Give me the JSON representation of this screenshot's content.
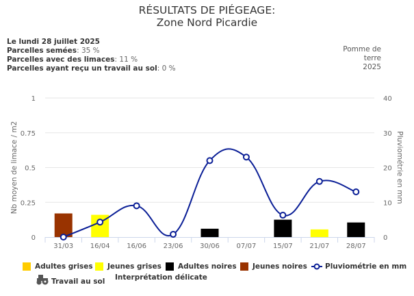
{
  "title": {
    "line1": "RÉSULTATS DE PIÉGEAGE:",
    "line2": "Zone Nord Picardie"
  },
  "info": {
    "date": "Le lundi 28 juillet 2025",
    "semees_label": "Parcelles semées",
    "semees_value": ": 35 %",
    "limaces_label": "Parcelles avec des limaces",
    "limaces_value": ": 11 %",
    "travail_label": "Parcelles ayant reçu un travail au sol",
    "travail_value": ": 0 %"
  },
  "crop": {
    "line1": "Pomme de",
    "line2": "terre",
    "line3": "2025"
  },
  "chart_data": {
    "type": "bar",
    "categories": [
      "31/03",
      "16/04",
      "16/06",
      "23/06",
      "30/06",
      "07/07",
      "15/07",
      "21/07",
      "28/07"
    ],
    "ylabel": "Nb moyen de limace / m2",
    "y2label": "Pluviométrie en mm",
    "ylim": [
      0,
      1
    ],
    "y2lim": [
      0,
      40
    ],
    "yticks": [
      "0",
      "0.25",
      "0.5",
      "0.75",
      "1"
    ],
    "y2ticks": [
      "0",
      "10",
      "20",
      "30",
      "40"
    ],
    "grid": true,
    "series": [
      {
        "name": "Adultes grises",
        "type": "bar",
        "color": "#FFCC00",
        "values": [
          0,
          0,
          0,
          0,
          0,
          0,
          0,
          0,
          0
        ]
      },
      {
        "name": "Jeunes grises",
        "type": "bar",
        "color": "#FFFF00",
        "values": [
          0,
          0.16,
          0,
          0,
          0,
          0,
          0,
          0.055,
          0
        ]
      },
      {
        "name": "Adultes noires",
        "type": "bar",
        "color": "#000000",
        "values": [
          0,
          0,
          0,
          0,
          0.06,
          0,
          0.125,
          0,
          0.105
        ]
      },
      {
        "name": "Jeunes noires",
        "type": "bar",
        "color": "#993300",
        "values": [
          0.17,
          0,
          0,
          0,
          0,
          0,
          0,
          0,
          0
        ]
      },
      {
        "name": "Pluviométrie en mm",
        "type": "line",
        "axis": "right",
        "color": "#0A1E96",
        "values": [
          0,
          4.3,
          9,
          0.8,
          22,
          23,
          6.3,
          16,
          13
        ]
      }
    ],
    "legend": {
      "placement": "bottom",
      "extra": [
        "Travail au sol",
        "Interprétation délicate"
      ]
    }
  }
}
